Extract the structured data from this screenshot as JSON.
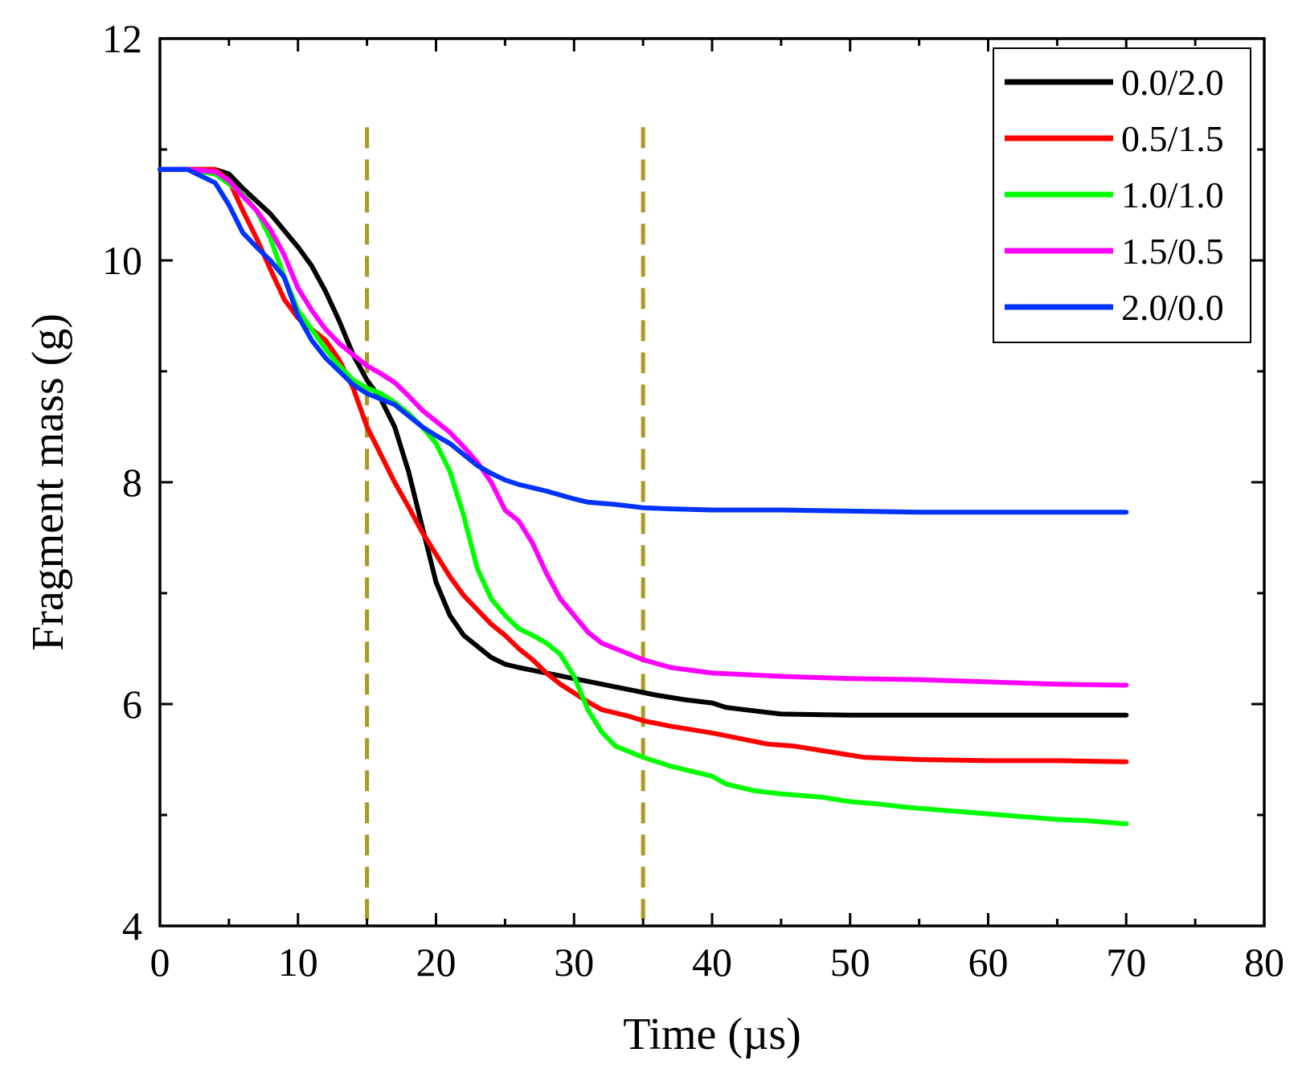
{
  "chart_data": {
    "type": "line",
    "title": "",
    "xlabel": "Time (µs)",
    "ylabel": "Fragment mass (g)",
    "xlim": [
      0,
      80
    ],
    "ylim": [
      4,
      12
    ],
    "xticks": [
      0,
      10,
      20,
      30,
      40,
      50,
      60,
      70,
      80
    ],
    "xtick_labels": [
      "0",
      "10",
      "20",
      "30",
      "40",
      "50",
      "60",
      "70",
      "80"
    ],
    "yticks": [
      4,
      6,
      8,
      10,
      12
    ],
    "ytick_labels": [
      "4",
      "6",
      "8",
      "10",
      "12"
    ],
    "grid": false,
    "legend_position": "top-right",
    "vlines": [
      {
        "x": 15,
        "color": "#a89a22",
        "style": "dashed",
        "y_top": 11.2
      },
      {
        "x": 35,
        "color": "#a89a22",
        "style": "dashed",
        "y_top": 11.2
      }
    ],
    "series": [
      {
        "name": "0.0/2.0",
        "color": "#000000",
        "x": [
          0,
          2,
          4,
          5,
          6,
          8,
          10,
          11,
          12,
          13,
          14,
          15,
          16,
          17,
          18,
          19,
          20,
          21,
          22,
          23,
          24,
          25,
          26,
          28,
          30,
          32,
          34,
          36,
          38,
          40,
          41,
          43,
          45,
          50,
          55,
          60,
          65,
          70
        ],
        "values": [
          10.82,
          10.82,
          10.82,
          10.78,
          10.65,
          10.42,
          10.12,
          9.95,
          9.72,
          9.45,
          9.15,
          8.92,
          8.75,
          8.5,
          8.1,
          7.6,
          7.1,
          6.8,
          6.62,
          6.52,
          6.42,
          6.36,
          6.33,
          6.28,
          6.23,
          6.18,
          6.13,
          6.08,
          6.04,
          6.01,
          5.97,
          5.94,
          5.91,
          5.9,
          5.9,
          5.9,
          5.9,
          5.9
        ]
      },
      {
        "name": "0.5/1.5",
        "color": "#ff0000",
        "x": [
          0,
          2,
          4,
          5,
          6,
          7,
          8,
          9,
          10,
          11,
          12,
          13,
          14,
          15,
          16,
          17,
          18,
          19,
          20,
          21,
          22,
          23,
          24,
          25,
          26,
          27,
          28,
          29,
          30,
          31,
          32,
          33,
          34,
          35,
          37,
          40,
          42,
          44,
          46,
          48,
          50,
          51,
          55,
          60,
          65,
          70
        ],
        "values": [
          10.82,
          10.82,
          10.82,
          10.72,
          10.45,
          10.2,
          9.92,
          9.65,
          9.48,
          9.38,
          9.28,
          9.1,
          8.85,
          8.5,
          8.25,
          8.0,
          7.78,
          7.55,
          7.35,
          7.15,
          6.98,
          6.85,
          6.72,
          6.62,
          6.5,
          6.4,
          6.28,
          6.18,
          6.1,
          6.02,
          5.95,
          5.92,
          5.89,
          5.85,
          5.8,
          5.74,
          5.69,
          5.64,
          5.62,
          5.58,
          5.54,
          5.52,
          5.5,
          5.49,
          5.49,
          5.48
        ]
      },
      {
        "name": "1.0/1.0",
        "color": "#00ff00",
        "x": [
          0,
          2,
          4,
          6,
          7,
          8,
          9,
          10,
          11,
          12,
          13,
          14,
          15,
          16,
          17,
          18,
          19,
          20,
          21,
          22,
          23,
          24,
          25,
          26,
          27,
          28,
          29,
          30,
          31,
          32,
          33,
          35,
          37,
          40,
          41,
          43,
          45,
          48,
          50,
          52,
          54,
          56,
          58,
          60,
          62,
          65,
          67,
          70
        ],
        "values": [
          10.82,
          10.82,
          10.78,
          10.6,
          10.45,
          10.2,
          9.85,
          9.55,
          9.38,
          9.2,
          9.05,
          8.92,
          8.85,
          8.8,
          8.72,
          8.62,
          8.5,
          8.35,
          8.1,
          7.7,
          7.22,
          6.95,
          6.8,
          6.68,
          6.62,
          6.55,
          6.45,
          6.25,
          5.95,
          5.75,
          5.62,
          5.52,
          5.44,
          5.35,
          5.28,
          5.22,
          5.19,
          5.16,
          5.12,
          5.1,
          5.07,
          5.05,
          5.03,
          5.01,
          4.99,
          4.96,
          4.95,
          4.92
        ]
      },
      {
        "name": "1.5/0.5",
        "color": "#ff00ff",
        "x": [
          0,
          2,
          4,
          5,
          6,
          7,
          8,
          9,
          10,
          11,
          12,
          13,
          14,
          15,
          16,
          17,
          18,
          19,
          20,
          21,
          22,
          23,
          24,
          25,
          26,
          27,
          28,
          29,
          30,
          31,
          32,
          33,
          34,
          35,
          37,
          40,
          45,
          50,
          55,
          60,
          65,
          70
        ],
        "values": [
          10.82,
          10.82,
          10.8,
          10.72,
          10.58,
          10.45,
          10.28,
          10.05,
          9.75,
          9.55,
          9.38,
          9.25,
          9.15,
          9.05,
          8.98,
          8.9,
          8.78,
          8.65,
          8.55,
          8.45,
          8.32,
          8.18,
          8.0,
          7.75,
          7.65,
          7.45,
          7.18,
          6.95,
          6.8,
          6.65,
          6.55,
          6.5,
          6.45,
          6.4,
          6.33,
          6.28,
          6.25,
          6.23,
          6.22,
          6.2,
          6.18,
          6.17
        ]
      },
      {
        "name": "2.0/0.0",
        "color": "#0033ff",
        "x": [
          0,
          2,
          4,
          5,
          6,
          7,
          8,
          9,
          10,
          11,
          12,
          13,
          14,
          15,
          16,
          17,
          18,
          19,
          20,
          21,
          22,
          23,
          24,
          25,
          26,
          28,
          30,
          31,
          32,
          33,
          35,
          37,
          40,
          45,
          50,
          55,
          60,
          65,
          70
        ],
        "values": [
          10.82,
          10.82,
          10.7,
          10.5,
          10.25,
          10.12,
          10.0,
          9.85,
          9.5,
          9.28,
          9.12,
          9.0,
          8.88,
          8.8,
          8.75,
          8.7,
          8.6,
          8.5,
          8.42,
          8.35,
          8.25,
          8.15,
          8.08,
          8.02,
          7.98,
          7.92,
          7.85,
          7.82,
          7.81,
          7.8,
          7.77,
          7.76,
          7.75,
          7.75,
          7.74,
          7.73,
          7.73,
          7.73,
          7.73
        ]
      }
    ]
  }
}
